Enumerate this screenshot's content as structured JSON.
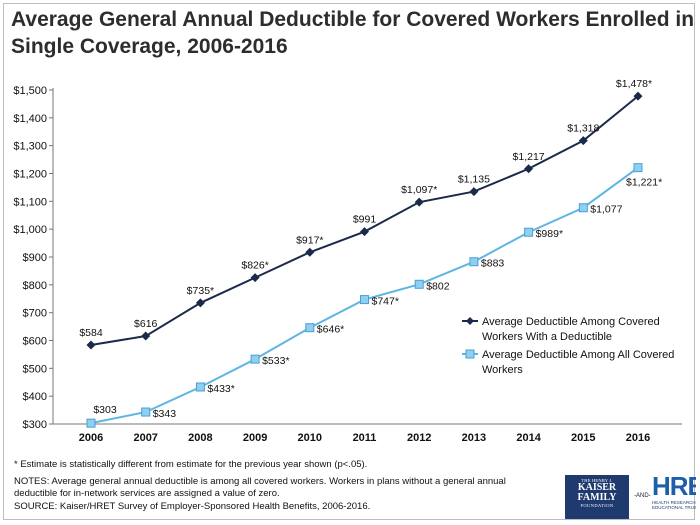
{
  "header": {
    "title_line1": "Average General Annual Deductible for Covered Workers Enrolled in",
    "title_line2": "Single Coverage, 2006-2016"
  },
  "chart_data": {
    "type": "line",
    "title": "Average General Annual Deductible for Covered Workers Enrolled in Single Coverage, 2006-2016",
    "x": [
      "2006",
      "2007",
      "2008",
      "2009",
      "2010",
      "2011",
      "2012",
      "2013",
      "2014",
      "2015",
      "2016"
    ],
    "ylim": [
      300,
      1500
    ],
    "yticks": [
      300,
      400,
      500,
      600,
      700,
      800,
      900,
      1000,
      1100,
      1200,
      1300,
      1400,
      1500
    ],
    "ytick_labels": [
      "$300",
      "$400",
      "$500",
      "$600",
      "$700",
      "$800",
      "$900",
      "$1,000",
      "$1,100",
      "$1,200",
      "$1,300",
      "$1,400",
      "$1,500"
    ],
    "xlabel": "",
    "ylabel": "",
    "grid": false,
    "legend_position": "right",
    "series": [
      {
        "name": "Average Deductible Among Covered Workers With a Deductible",
        "legend_lines": [
          "Average Deductible Among Covered",
          "Workers With a Deductible"
        ],
        "color": "#1b2a4a",
        "marker": "diamond",
        "values": [
          584,
          616,
          735,
          826,
          917,
          991,
          1097,
          1135,
          1217,
          1318,
          1478
        ],
        "labels": [
          "$584",
          "$616",
          "$735*",
          "$826*",
          "$917*",
          "$991",
          "$1,097*",
          "$1,135",
          "$1,217",
          "$1,318",
          "$1,478*"
        ]
      },
      {
        "name": "Average Deductible Among All Covered Workers",
        "legend_lines": [
          "Average Deductible Among All Covered",
          "Workers"
        ],
        "color": "#5fb5e3",
        "marker": "square",
        "values": [
          303,
          343,
          433,
          533,
          646,
          747,
          802,
          883,
          989,
          1077,
          1221
        ],
        "labels": [
          "$303",
          "$343",
          "$433*",
          "$533*",
          "$646*",
          "$747*",
          "$802",
          "$883",
          "$989*",
          "$1,077",
          "$1,221*"
        ]
      }
    ]
  },
  "notes": {
    "footnote": "* Estimate is statistically different from estimate for the previous year shown (p<.05).",
    "notes_line1": "NOTES: Average general annual deductible  is among  all covered workers. Workers in plans without a general annual",
    "notes_line2": "deductible for in-network services are assigned a value of zero.",
    "source": "SOURCE:  Kaiser/HRET Survey of Employer-Sponsored Health Benefits, 2006-2016."
  },
  "logos": {
    "kff_top": "THE HENRY J.",
    "kff_line1": "KAISER",
    "kff_line2": "FAMILY",
    "kff_bottom": "FOUNDATION",
    "and": "-AND-",
    "hret": "HRET",
    "hret_sub1": "HEALTH RESEARCH &",
    "hret_sub2": "EDUCATIONAL TRUST"
  }
}
